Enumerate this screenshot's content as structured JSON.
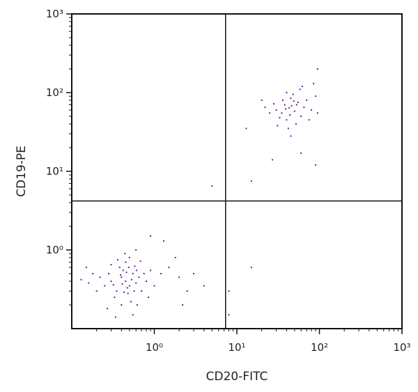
{
  "chart_data": {
    "type": "scatter",
    "xlabel": "CD20-FITC",
    "ylabel": "CD19-PE",
    "log_scale": true,
    "xlim": [
      0.1,
      1000
    ],
    "ylim": [
      0.1,
      1000
    ],
    "xticks": [
      {
        "value": 1,
        "label": "10⁰"
      },
      {
        "value": 10,
        "label": "10¹"
      },
      {
        "value": 100,
        "label": "10²"
      },
      {
        "value": 1000,
        "label": "10³"
      }
    ],
    "yticks": [
      {
        "value": 1,
        "label": "10⁰"
      },
      {
        "value": 10,
        "label": "10¹"
      },
      {
        "value": 100,
        "label": "10²"
      },
      {
        "value": 1000,
        "label": "10³"
      }
    ],
    "minor_ticks": [
      0.2,
      0.3,
      0.4,
      0.5,
      0.6,
      0.7,
      0.8,
      0.9,
      2,
      3,
      4,
      5,
      6,
      7,
      8,
      9,
      20,
      30,
      40,
      50,
      60,
      70,
      80,
      90,
      200,
      300,
      400,
      500,
      600,
      700,
      800,
      900
    ],
    "gates": {
      "x": 7.3,
      "y": 4.2
    },
    "series": [
      {
        "color": "#6a1b9a",
        "x": [
          0.45,
          0.5,
          0.4,
          0.55,
          0.35,
          0.6,
          0.42,
          0.48,
          0.3,
          0.65,
          0.38,
          0.52,
          0.28,
          0.7,
          0.45,
          0.33,
          0.58,
          0.25,
          0.75,
          0.4,
          0.5,
          0.22,
          0.8,
          0.36,
          0.62,
          0.2,
          0.9,
          0.3,
          0.55,
          0.18,
          1.0,
          0.44,
          0.27,
          0.68,
          0.16,
          1.2,
          0.34,
          0.85,
          0.15,
          0.6,
          0.47,
          0.41,
          0.53,
          0.39,
          0.57,
          0.46,
          0.32,
          0.49,
          0.43,
          0.61,
          1.5,
          2.0,
          2.5,
          1.8,
          3.0,
          4.0,
          1.3,
          0.9,
          0.13,
          2.2,
          43,
          38,
          50,
          35,
          55,
          45,
          30,
          60,
          40,
          48,
          28,
          65,
          52,
          36,
          70,
          33,
          58,
          25,
          80,
          42,
          46,
          39,
          53,
          44,
          49,
          22,
          90,
          75,
          31,
          62,
          20,
          85,
          45,
          95,
          40,
          13,
          15,
          5,
          27,
          60,
          90,
          95,
          15,
          8,
          8
        ],
        "y": [
          0.4,
          0.35,
          0.45,
          0.5,
          0.3,
          0.38,
          0.55,
          0.28,
          0.4,
          0.45,
          0.6,
          0.22,
          0.5,
          0.3,
          0.7,
          0.25,
          0.62,
          0.35,
          0.5,
          0.2,
          0.8,
          0.45,
          0.4,
          0.75,
          0.2,
          0.3,
          0.55,
          0.65,
          0.15,
          0.5,
          0.35,
          0.9,
          0.18,
          0.72,
          0.38,
          0.5,
          0.14,
          0.25,
          0.6,
          1.0,
          0.33,
          0.37,
          0.42,
          0.48,
          0.3,
          0.52,
          0.36,
          0.6,
          0.29,
          0.55,
          0.6,
          0.45,
          0.3,
          0.8,
          0.5,
          0.35,
          1.3,
          1.5,
          0.42,
          0.2,
          64,
          70,
          58,
          55,
          75,
          85,
          60,
          50,
          45,
          95,
          72,
          65,
          40,
          80,
          80,
          48,
          110,
          55,
          60,
          35,
          68,
          62,
          70,
          52,
          78,
          65,
          90,
          45,
          38,
          120,
          80,
          130,
          28,
          55,
          100,
          35,
          7.5,
          6.5,
          14,
          17,
          12,
          200,
          0.6,
          0.15,
          0.3
        ]
      }
    ]
  }
}
